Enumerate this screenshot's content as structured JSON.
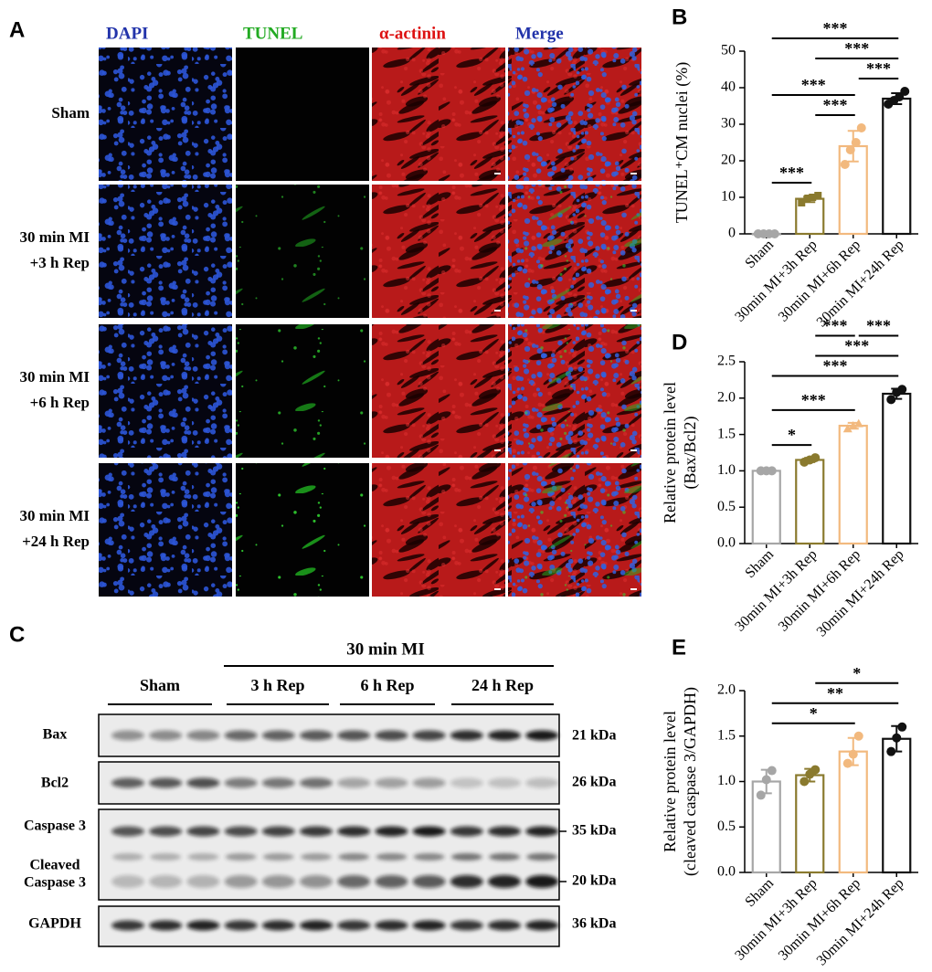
{
  "panel_labels": [
    "A",
    "B",
    "C",
    "D",
    "E"
  ],
  "microscopy": {
    "columns": [
      {
        "label": "DAPI",
        "color": "#2233aa"
      },
      {
        "label": "TUNEL",
        "color": "#22aa22"
      },
      {
        "label": "α-actinin",
        "color": "#dd1111"
      },
      {
        "label": "Merge",
        "color": "#2233aa"
      }
    ],
    "rows": [
      [
        "Sham"
      ],
      [
        "30 min MI",
        "+3 h Rep"
      ],
      [
        "30 min MI",
        "+6 h Rep"
      ],
      [
        "30 min MI",
        "+24 h Rep"
      ]
    ]
  },
  "blot": {
    "header": "30 min MI",
    "groups": [
      "Sham",
      "3 h Rep",
      "6 h Rep",
      "24 h Rep"
    ],
    "rows": [
      {
        "label": [
          "Bax"
        ],
        "size": "21 kDa"
      },
      {
        "label": [
          "Bcl2"
        ],
        "size": "26 kDa"
      },
      {
        "label": [
          "Caspase 3"
        ],
        "size": "35 kDa"
      },
      {
        "label": [
          "Cleaved",
          "Caspase 3"
        ],
        "size": "20 kDa"
      },
      {
        "label": [
          "GAPDH"
        ],
        "size": "36 kDa"
      }
    ]
  },
  "chart_data": [
    {
      "type": "bar",
      "ylabel": [
        "TUNEL⁺CM nuclei (%)"
      ],
      "categories": [
        "Sham",
        "30min MI+3h Rep",
        "30min MI+6h Rep",
        "30min MI+24h Rep"
      ],
      "colors": [
        "#a6a6a6",
        "#8a7a2e",
        "#f2b97e",
        "#111111"
      ],
      "values": [
        0,
        9.6,
        24,
        37
      ],
      "errors": [
        0.2,
        0.9,
        4.2,
        1.5
      ],
      "points": [
        [
          0,
          0,
          0,
          0
        ],
        [
          8.5,
          9.5,
          10,
          10.5
        ],
        [
          19,
          23,
          25,
          29
        ],
        [
          35.5,
          36.5,
          37.5,
          39
        ]
      ],
      "ylim": [
        0,
        50
      ],
      "yticks": [
        0,
        10,
        20,
        30,
        40,
        50
      ],
      "annotations": [
        {
          "from": 0,
          "to": 1,
          "text": "***"
        },
        {
          "from": 1,
          "to": 2,
          "text": "***"
        },
        {
          "from": 0,
          "to": 2,
          "text": "***"
        },
        {
          "from": 2,
          "to": 3,
          "text": "***"
        },
        {
          "from": 1,
          "to": 3,
          "text": "***"
        },
        {
          "from": 0,
          "to": 3,
          "text": "***"
        }
      ]
    },
    {
      "type": "bar",
      "ylabel": [
        "Relative protein level",
        "(Bax/Bcl2)"
      ],
      "categories": [
        "Sham",
        "30min MI+3h Rep",
        "30min MI+6h Rep",
        "30min MI+24h Rep"
      ],
      "colors": [
        "#a6a6a6",
        "#8a7a2e",
        "#f2b97e",
        "#111111"
      ],
      "values": [
        1.0,
        1.15,
        1.62,
        2.06
      ],
      "errors": [
        0.01,
        0.03,
        0.04,
        0.07
      ],
      "points": [
        [
          1,
          1,
          1
        ],
        [
          1.12,
          1.15,
          1.18
        ],
        [
          1.58,
          1.62,
          1.65
        ],
        [
          1.98,
          2.08,
          2.12
        ]
      ],
      "ylim": [
        0,
        2.5
      ],
      "yticks": [
        {
          "value": 0,
          "label": "0.0"
        },
        0.5,
        {
          "value": 1,
          "label": "1.0"
        },
        1.5,
        {
          "value": 2,
          "label": "2.0"
        },
        2.5
      ],
      "annotations": [
        {
          "from": 0,
          "to": 1,
          "text": "*"
        },
        {
          "from": 0,
          "to": 2,
          "text": "***"
        },
        {
          "from": 0,
          "to": 3,
          "text": "***"
        },
        {
          "from": 1,
          "to": 3,
          "text": "***"
        },
        {
          "from": 1,
          "to": 2,
          "text": "***"
        },
        {
          "from": 2,
          "to": 3,
          "text": "***"
        }
      ]
    },
    {
      "type": "bar",
      "ylabel": [
        "Relative protein level",
        "(cleaved caspase 3/GAPDH)"
      ],
      "categories": [
        "Sham",
        "30min MI+3h Rep",
        "30min MI+6h Rep",
        "30min MI+24h Rep"
      ],
      "colors": [
        "#a6a6a6",
        "#8a7a2e",
        "#f2b97e",
        "#111111"
      ],
      "values": [
        1.0,
        1.07,
        1.33,
        1.47
      ],
      "errors": [
        0.13,
        0.07,
        0.15,
        0.14
      ],
      "points": [
        [
          0.85,
          1.02,
          1.12
        ],
        [
          1.0,
          1.08,
          1.13
        ],
        [
          1.2,
          1.3,
          1.5
        ],
        [
          1.33,
          1.48,
          1.6
        ]
      ],
      "ylim": [
        0,
        2
      ],
      "yticks": [
        {
          "value": 0,
          "label": "0.0"
        },
        0.5,
        {
          "value": 1,
          "label": "1.0"
        },
        1.5,
        {
          "value": 2,
          "label": "2.0"
        }
      ],
      "annotations": [
        {
          "from": 0,
          "to": 2,
          "text": "*"
        },
        {
          "from": 0,
          "to": 3,
          "text": "**"
        },
        {
          "from": 1,
          "to": 3,
          "text": "*"
        }
      ]
    }
  ]
}
